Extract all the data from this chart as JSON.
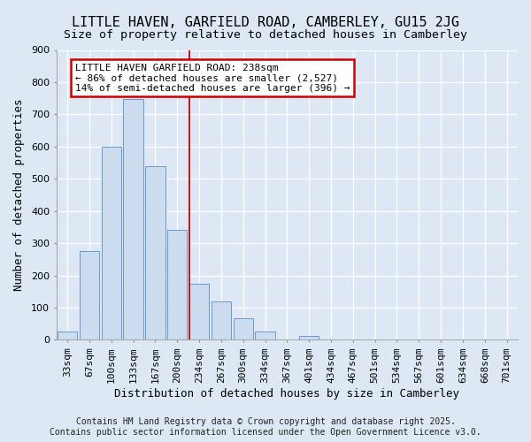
{
  "title": "LITTLE HAVEN, GARFIELD ROAD, CAMBERLEY, GU15 2JG",
  "subtitle": "Size of property relative to detached houses in Camberley",
  "xlabel": "Distribution of detached houses by size in Camberley",
  "ylabel": "Number of detached properties",
  "categories": [
    "33sqm",
    "67sqm",
    "100sqm",
    "133sqm",
    "167sqm",
    "200sqm",
    "234sqm",
    "267sqm",
    "300sqm",
    "334sqm",
    "367sqm",
    "401sqm",
    "434sqm",
    "467sqm",
    "501sqm",
    "534sqm",
    "567sqm",
    "601sqm",
    "634sqm",
    "668sqm",
    "701sqm"
  ],
  "values": [
    25,
    275,
    600,
    748,
    538,
    342,
    175,
    120,
    68,
    25,
    0,
    12,
    0,
    0,
    0,
    0,
    0,
    0,
    0,
    0,
    0
  ],
  "bar_color": "#ccdcee",
  "bar_edge_color": "#6699cc",
  "fig_facecolor": "#dde8f4",
  "ax_facecolor": "#dde8f4",
  "grid_color": "#ffffff",
  "vline_color": "#cc0000",
  "vline_index": 6,
  "annotation_line1": "LITTLE HAVEN GARFIELD ROAD: 238sqm",
  "annotation_line2": "← 86% of detached houses are smaller (2,527)",
  "annotation_line3": "14% of semi-detached houses are larger (396) →",
  "annotation_box_edgecolor": "#cc0000",
  "annotation_box_facecolor": "#ffffff",
  "footer1": "Contains HM Land Registry data © Crown copyright and database right 2025.",
  "footer2": "Contains public sector information licensed under the Open Government Licence v3.0.",
  "ylim": [
    0,
    900
  ],
  "yticks": [
    0,
    100,
    200,
    300,
    400,
    500,
    600,
    700,
    800,
    900
  ],
  "title_fontsize": 11,
  "subtitle_fontsize": 9.5,
  "axis_label_fontsize": 9,
  "tick_fontsize": 8,
  "annot_fontsize": 8,
  "footer_fontsize": 7
}
